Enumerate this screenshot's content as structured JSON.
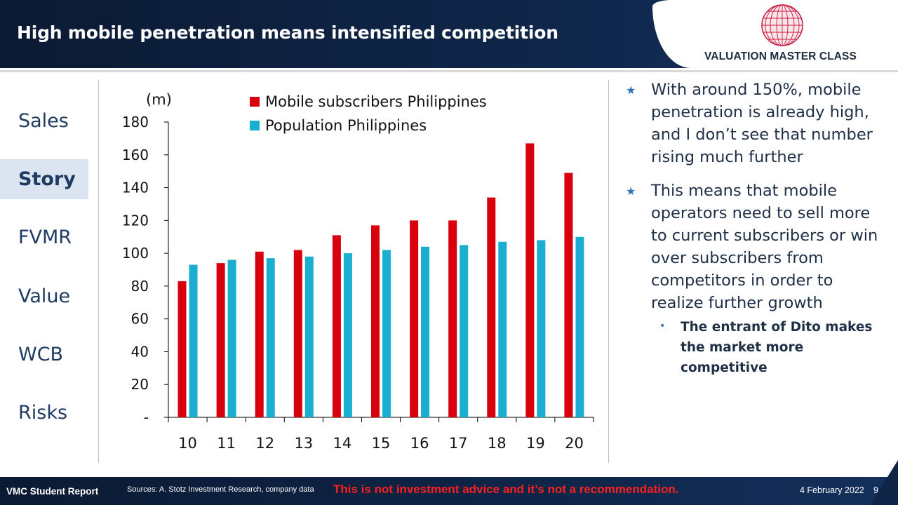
{
  "header": {
    "title": "High mobile penetration means intensified competition",
    "logo_text": "VALUATION MASTER CLASS",
    "logo_icon": "globe-icon"
  },
  "nav": {
    "items": [
      {
        "label": "Sales",
        "active": false
      },
      {
        "label": "Story",
        "active": true
      },
      {
        "label": "FVMR",
        "active": false
      },
      {
        "label": "Value",
        "active": false
      },
      {
        "label": "WCB",
        "active": false
      },
      {
        "label": "Risks",
        "active": false
      }
    ]
  },
  "chart_data": {
    "type": "bar",
    "unit_label": "(m)",
    "categories": [
      "10",
      "11",
      "12",
      "13",
      "14",
      "15",
      "16",
      "17",
      "18",
      "19",
      "20"
    ],
    "series": [
      {
        "name": "Mobile subscribers Philippines",
        "color": "#d9000d",
        "values": [
          83,
          94,
          101,
          102,
          111,
          117,
          120,
          120,
          134,
          167,
          149
        ]
      },
      {
        "name": "Population Philippines",
        "color": "#1aaed1",
        "values": [
          93,
          96,
          97,
          98,
          100,
          102,
          104,
          105,
          107,
          108,
          110
        ]
      }
    ],
    "ylim": [
      0,
      180
    ],
    "yticks": [
      0,
      20,
      40,
      60,
      80,
      100,
      120,
      140,
      160,
      180
    ],
    "ytick_labels": [
      "-",
      "20",
      "40",
      "60",
      "80",
      "100",
      "120",
      "140",
      "160",
      "180"
    ],
    "legend_position": "top",
    "grid": false
  },
  "bullets": [
    {
      "text": "With around 150%, mobile penetration is already high, and I don’t see that number rising much further"
    },
    {
      "text": "This means that mobile operators need to sell more to current subscribers or win over subscribers from competitors in order to realize further growth"
    }
  ],
  "sub_bullet": {
    "text": "The entrant of Dito makes the market more competitive"
  },
  "footer": {
    "label": "VMC Student Report",
    "sources": "Sources: A. Stotz Investment Research, company data",
    "disclaimer": "This is not investment advice and it’s not a recommendation.",
    "date": "4 February 2022",
    "page": "9"
  }
}
